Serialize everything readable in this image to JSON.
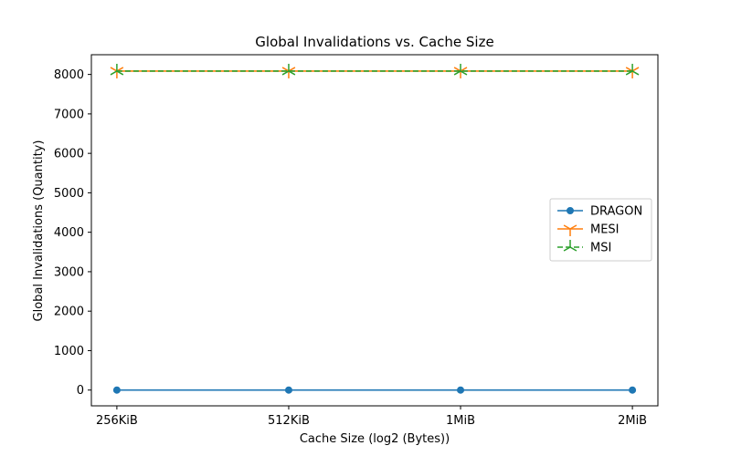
{
  "chart_data": {
    "type": "line",
    "title": "Global Invalidations vs. Cache Size",
    "xlabel": "Cache Size (log2 (Bytes))",
    "ylabel": "Global Invalidations (Quantity)",
    "categories": [
      "256KiB",
      "512KiB",
      "1MiB",
      "2MiB"
    ],
    "ylim": [
      -400,
      8500
    ],
    "yticks": [
      0,
      1000,
      2000,
      3000,
      4000,
      5000,
      6000,
      7000,
      8000
    ],
    "grid": false,
    "legend_position": "center-right",
    "series": [
      {
        "name": "DRAGON",
        "values": [
          0,
          0,
          0,
          0
        ],
        "color": "#1f77b4",
        "line_style": "solid",
        "marker": "circle"
      },
      {
        "name": "MESI",
        "values": [
          8085,
          8085,
          8085,
          8085
        ],
        "color": "#ff7f0e",
        "line_style": "solid",
        "marker": "tri_down"
      },
      {
        "name": "MSI",
        "values": [
          8085,
          8085,
          8085,
          8085
        ],
        "color": "#2ca02c",
        "line_style": "dashed",
        "marker": "tri_up"
      }
    ]
  }
}
